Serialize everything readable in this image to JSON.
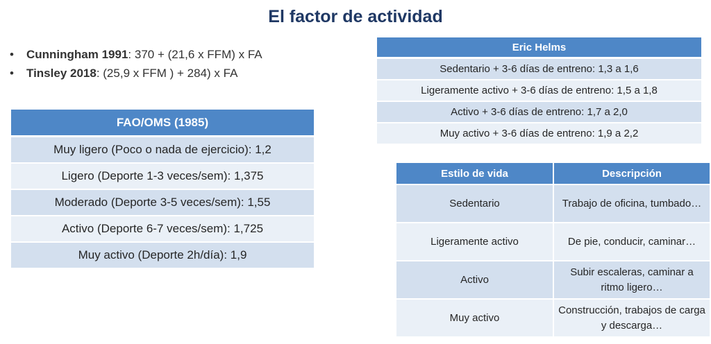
{
  "title": "El factor de actividad",
  "formulas": [
    {
      "name": "Cunningham 1991",
      "text": ": 370 + (21,6 x FFM) x FA"
    },
    {
      "name": "Tinsley 2018",
      "text": ": (25,9 x FFM ) + 284) x FA"
    }
  ],
  "fao": {
    "header": "FAO/OMS (1985)",
    "rows": [
      "Muy ligero (Poco o nada de ejercicio): 1,2",
      "Ligero (Deporte 1-3 veces/sem): 1,375",
      "Moderado (Deporte 3-5 veces/sem): 1,55",
      "Activo (Deporte 6-7 veces/sem): 1,725",
      "Muy activo (Deporte 2h/día): 1,9"
    ]
  },
  "helms": {
    "header": "Eric Helms",
    "rows": [
      "Sedentario + 3-6 días de entreno: 1,3 a 1,6",
      "Ligeramente activo + 3-6 días de entreno: 1,5 a 1,8",
      "Activo + 3-6 días de entreno: 1,7 a 2,0",
      "Muy activo + 3-6 días de entreno: 1,9 a 2,2"
    ]
  },
  "estilo": {
    "headers": [
      "Estilo de vida",
      "Descripción"
    ],
    "rows": [
      {
        "estilo": "Sedentario",
        "descripcion": "Trabajo de oficina, tumbado…"
      },
      {
        "estilo": "Ligeramente activo",
        "descripcion": "De pie, conducir, caminar…"
      },
      {
        "estilo": "Activo",
        "descripcion": "Subir escaleras, caminar a ritmo ligero…"
      },
      {
        "estilo": "Muy activo",
        "descripcion": "Construcción, trabajos de carga y descarga…"
      }
    ]
  },
  "colors": {
    "title": "#1f3864",
    "header_bg": "#4e87c7",
    "row_dark": "#d3dfee",
    "row_light": "#eaf0f7"
  }
}
